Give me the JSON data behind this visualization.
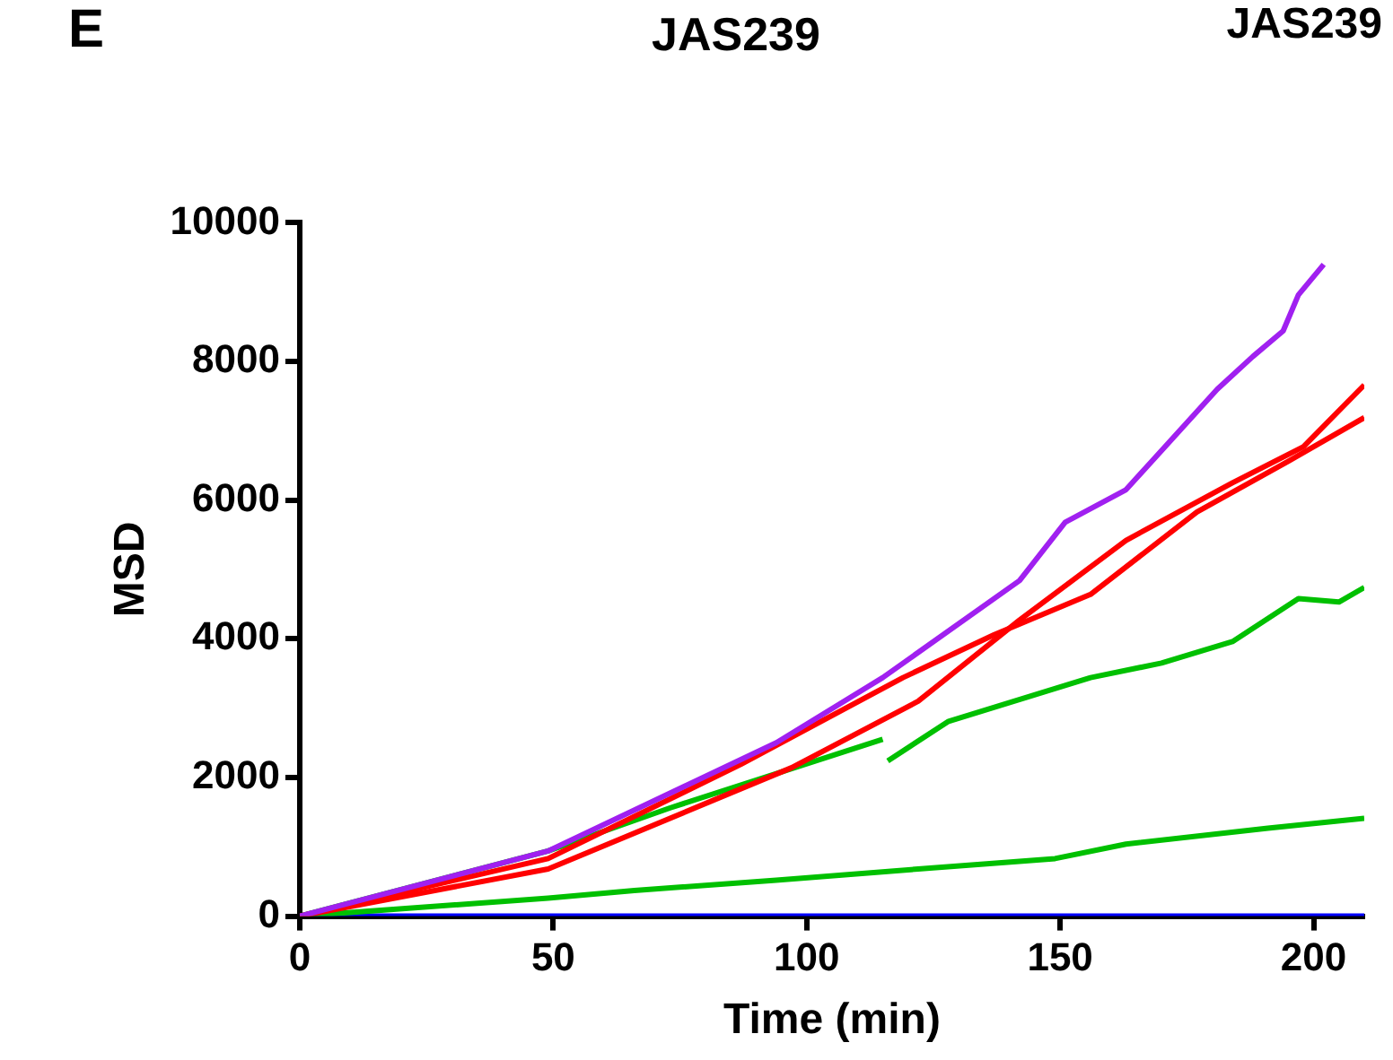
{
  "chart_data": {
    "type": "line",
    "title": "JAS239",
    "xlabel": "Time (min)",
    "ylabel": "MSD",
    "annotations": [
      "E",
      "JAS239"
    ],
    "xlim": [
      0,
      210
    ],
    "xticks": [
      0,
      50,
      100,
      150,
      200
    ],
    "ylim": [
      0,
      10000
    ],
    "yticks": [
      0,
      2000,
      4000,
      6000,
      8000,
      10000
    ],
    "grid": false,
    "legend": false,
    "marker": "none",
    "series": [
      {
        "color": "#a020f0",
        "x": [
          0,
          49,
          94,
          115,
          142,
          151,
          163,
          181,
          188,
          194,
          197,
          202
        ],
        "values": [
          0,
          940,
          2500,
          3440,
          4840,
          5680,
          6150,
          7600,
          8070,
          8440,
          8960,
          9400
        ]
      },
      {
        "color": "#ff0000",
        "x": [
          0,
          49,
          87,
          119,
          137,
          156,
          177,
          195,
          210
        ],
        "values": [
          0,
          830,
          2190,
          3440,
          4060,
          4640,
          5830,
          6560,
          7190
        ]
      },
      {
        "color": "#ff0000",
        "x": [
          0,
          49,
          97,
          122,
          142,
          163,
          184,
          198,
          210
        ],
        "values": [
          0,
          680,
          2140,
          3100,
          4270,
          5420,
          6250,
          6770,
          7660
        ]
      },
      {
        "color": "#00c000",
        "x": [
          0,
          49,
          73,
          115,
          115.5,
          116,
          128,
          156,
          170,
          184,
          197,
          205,
          210
        ],
        "values": [
          0,
          940,
          1560,
          2550,
          null,
          2240,
          2810,
          3440,
          3650,
          3960,
          4580,
          4530,
          4740
        ]
      },
      {
        "color": "#00c000",
        "x": [
          0,
          49,
          66,
          94,
          122,
          149,
          163,
          191,
          210
        ],
        "values": [
          0,
          260,
          370,
          520,
          680,
          830,
          1040,
          1270,
          1410
        ]
      },
      {
        "color": "#0000ff",
        "x": [
          0,
          210
        ],
        "values": [
          0,
          0
        ]
      }
    ]
  }
}
